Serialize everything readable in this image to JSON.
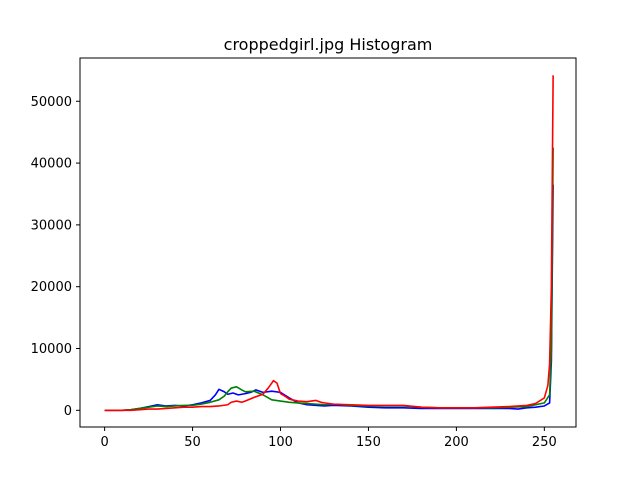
{
  "chart_data": {
    "type": "line",
    "title": "croppedgirl.jpg Histogram",
    "xlabel": "",
    "ylabel": "",
    "xlim": [
      -14,
      268
    ],
    "ylim": [
      -2700,
      57000
    ],
    "xticks": [
      0,
      50,
      100,
      150,
      200,
      250
    ],
    "yticks": [
      0,
      10000,
      20000,
      30000,
      40000,
      50000
    ],
    "xtick_labels": [
      "0",
      "50",
      "100",
      "150",
      "200",
      "250"
    ],
    "ytick_labels": [
      "0",
      "10000",
      "20000",
      "30000",
      "40000",
      "50000"
    ],
    "grid": false,
    "legend": false,
    "series": [
      {
        "color": "#0000ff",
        "points": [
          [
            0,
            0
          ],
          [
            10,
            0
          ],
          [
            15,
            100
          ],
          [
            20,
            300
          ],
          [
            25,
            600
          ],
          [
            30,
            900
          ],
          [
            35,
            700
          ],
          [
            40,
            800
          ],
          [
            45,
            700
          ],
          [
            50,
            900
          ],
          [
            55,
            1200
          ],
          [
            60,
            1600
          ],
          [
            63,
            2500
          ],
          [
            65,
            3400
          ],
          [
            68,
            3000
          ],
          [
            70,
            2600
          ],
          [
            73,
            2800
          ],
          [
            76,
            2500
          ],
          [
            80,
            2700
          ],
          [
            83,
            2900
          ],
          [
            86,
            3300
          ],
          [
            90,
            2900
          ],
          [
            95,
            3100
          ],
          [
            100,
            2900
          ],
          [
            105,
            2000
          ],
          [
            110,
            1200
          ],
          [
            115,
            900
          ],
          [
            120,
            800
          ],
          [
            125,
            700
          ],
          [
            130,
            800
          ],
          [
            140,
            700
          ],
          [
            150,
            500
          ],
          [
            160,
            400
          ],
          [
            170,
            400
          ],
          [
            180,
            300
          ],
          [
            190,
            300
          ],
          [
            200,
            300
          ],
          [
            210,
            300
          ],
          [
            220,
            300
          ],
          [
            230,
            300
          ],
          [
            235,
            200
          ],
          [
            240,
            400
          ],
          [
            245,
            500
          ],
          [
            250,
            700
          ],
          [
            253,
            1200
          ],
          [
            254,
            8000
          ],
          [
            255,
            36500
          ]
        ]
      },
      {
        "color": "#008000",
        "points": [
          [
            0,
            0
          ],
          [
            10,
            0
          ],
          [
            15,
            100
          ],
          [
            20,
            300
          ],
          [
            25,
            500
          ],
          [
            30,
            700
          ],
          [
            35,
            600
          ],
          [
            40,
            700
          ],
          [
            45,
            800
          ],
          [
            50,
            800
          ],
          [
            55,
            1000
          ],
          [
            60,
            1300
          ],
          [
            65,
            1700
          ],
          [
            68,
            2300
          ],
          [
            70,
            3000
          ],
          [
            72,
            3600
          ],
          [
            75,
            3800
          ],
          [
            78,
            3300
          ],
          [
            80,
            3000
          ],
          [
            85,
            3100
          ],
          [
            90,
            2500
          ],
          [
            95,
            1700
          ],
          [
            100,
            1500
          ],
          [
            105,
            1300
          ],
          [
            110,
            1200
          ],
          [
            115,
            1100
          ],
          [
            120,
            1000
          ],
          [
            125,
            900
          ],
          [
            130,
            1000
          ],
          [
            140,
            800
          ],
          [
            150,
            700
          ],
          [
            160,
            700
          ],
          [
            170,
            700
          ],
          [
            180,
            500
          ],
          [
            190,
            400
          ],
          [
            200,
            400
          ],
          [
            210,
            400
          ],
          [
            220,
            400
          ],
          [
            230,
            500
          ],
          [
            240,
            600
          ],
          [
            245,
            900
          ],
          [
            250,
            1200
          ],
          [
            253,
            2500
          ],
          [
            254,
            10000
          ],
          [
            255,
            42500
          ]
        ]
      },
      {
        "color": "#ff0000",
        "points": [
          [
            0,
            0
          ],
          [
            10,
            0
          ],
          [
            15,
            0
          ],
          [
            20,
            100
          ],
          [
            25,
            200
          ],
          [
            30,
            200
          ],
          [
            35,
            300
          ],
          [
            40,
            400
          ],
          [
            45,
            500
          ],
          [
            50,
            500
          ],
          [
            55,
            600
          ],
          [
            60,
            600
          ],
          [
            65,
            700
          ],
          [
            70,
            900
          ],
          [
            72,
            1300
          ],
          [
            75,
            1500
          ],
          [
            78,
            1300
          ],
          [
            80,
            1500
          ],
          [
            85,
            2100
          ],
          [
            90,
            2600
          ],
          [
            93,
            3600
          ],
          [
            96,
            4800
          ],
          [
            98,
            4400
          ],
          [
            100,
            2700
          ],
          [
            103,
            2200
          ],
          [
            105,
            1800
          ],
          [
            110,
            1500
          ],
          [
            115,
            1400
          ],
          [
            120,
            1600
          ],
          [
            123,
            1300
          ],
          [
            125,
            1200
          ],
          [
            130,
            1000
          ],
          [
            140,
            900
          ],
          [
            150,
            800
          ],
          [
            160,
            800
          ],
          [
            170,
            800
          ],
          [
            180,
            500
          ],
          [
            190,
            400
          ],
          [
            200,
            400
          ],
          [
            210,
            400
          ],
          [
            220,
            500
          ],
          [
            230,
            600
          ],
          [
            240,
            800
          ],
          [
            245,
            1100
          ],
          [
            250,
            2000
          ],
          [
            252,
            4000
          ],
          [
            253,
            7500
          ],
          [
            254,
            20000
          ],
          [
            255,
            54200
          ]
        ]
      }
    ]
  }
}
